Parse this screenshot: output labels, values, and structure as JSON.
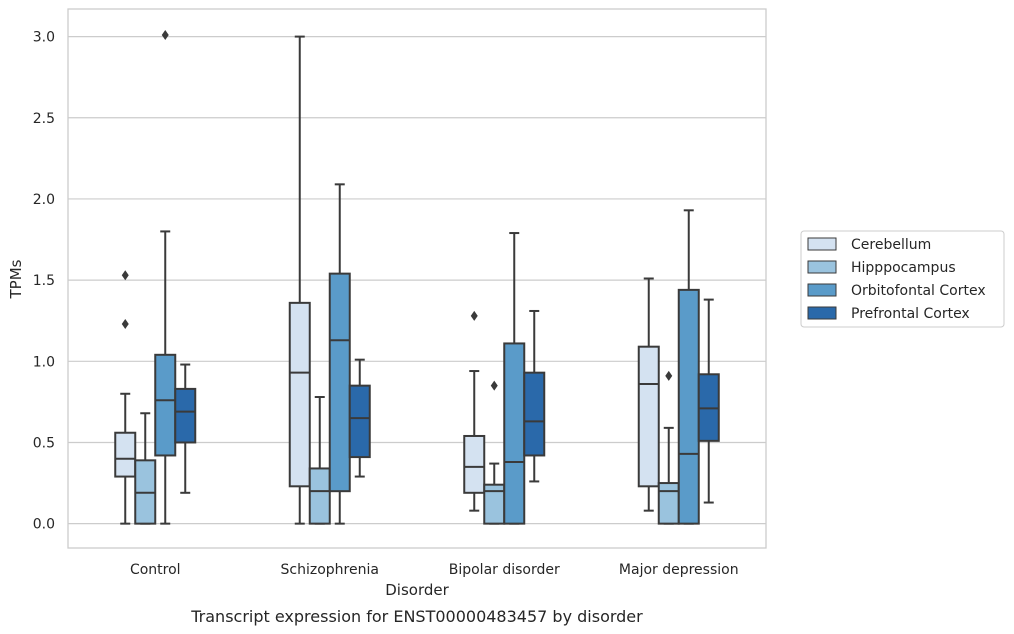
{
  "caption": "Transcript expression for ENST00000483457 by disorder",
  "chart_data": {
    "type": "box",
    "xlabel": "Disorder",
    "ylabel": "TPMs",
    "ylim": [
      -0.15,
      3.17
    ],
    "yticks": [
      0.0,
      0.5,
      1.0,
      1.5,
      2.0,
      2.5,
      3.0
    ],
    "ytick_labels": [
      "0.0",
      "0.5",
      "1.0",
      "1.5",
      "2.0",
      "2.5",
      "3.0"
    ],
    "grid": "horizontal",
    "legend_position": "right",
    "categories": [
      "Control",
      "Schizophrenia",
      "Bipolar disorder",
      "Major depression"
    ],
    "series": [
      {
        "name": "Cerebellum",
        "color": "#d4e2f1",
        "boxes": [
          {
            "whisker_low": 0.0,
            "q1": 0.29,
            "median": 0.4,
            "q3": 0.56,
            "whisker_high": 0.8,
            "outliers": [
              1.23,
              1.53
            ]
          },
          {
            "whisker_low": 0.0,
            "q1": 0.23,
            "median": 0.93,
            "q3": 1.36,
            "whisker_high": 3.0,
            "outliers": []
          },
          {
            "whisker_low": 0.08,
            "q1": 0.19,
            "median": 0.35,
            "q3": 0.54,
            "whisker_high": 0.94,
            "outliers": [
              1.28
            ]
          },
          {
            "whisker_low": 0.08,
            "q1": 0.23,
            "median": 0.86,
            "q3": 1.09,
            "whisker_high": 1.51,
            "outliers": []
          }
        ]
      },
      {
        "name": "Hipppocampus",
        "color": "#9ac3de",
        "boxes": [
          {
            "whisker_low": 0.0,
            "q1": 0.0,
            "median": 0.19,
            "q3": 0.39,
            "whisker_high": 0.68,
            "outliers": []
          },
          {
            "whisker_low": 0.0,
            "q1": 0.0,
            "median": 0.2,
            "q3": 0.34,
            "whisker_high": 0.78,
            "outliers": []
          },
          {
            "whisker_low": 0.0,
            "q1": 0.0,
            "median": 0.2,
            "q3": 0.24,
            "whisker_high": 0.37,
            "outliers": [
              0.85
            ]
          },
          {
            "whisker_low": 0.0,
            "q1": 0.0,
            "median": 0.2,
            "q3": 0.25,
            "whisker_high": 0.59,
            "outliers": [
              0.91
            ]
          }
        ]
      },
      {
        "name": "Orbitofontal Cortex",
        "color": "#5a9bc9",
        "boxes": [
          {
            "whisker_low": 0.0,
            "q1": 0.42,
            "median": 0.76,
            "q3": 1.04,
            "whisker_high": 1.8,
            "outliers": [
              3.01
            ]
          },
          {
            "whisker_low": 0.0,
            "q1": 0.2,
            "median": 1.13,
            "q3": 1.54,
            "whisker_high": 2.09,
            "outliers": []
          },
          {
            "whisker_low": 0.0,
            "q1": 0.0,
            "median": 0.38,
            "q3": 1.11,
            "whisker_high": 1.79,
            "outliers": []
          },
          {
            "whisker_low": 0.0,
            "q1": 0.0,
            "median": 0.43,
            "q3": 1.44,
            "whisker_high": 1.93,
            "outliers": []
          }
        ]
      },
      {
        "name": "Prefrontal Cortex",
        "color": "#2a69aa",
        "boxes": [
          {
            "whisker_low": 0.19,
            "q1": 0.5,
            "median": 0.69,
            "q3": 0.83,
            "whisker_high": 0.98,
            "outliers": []
          },
          {
            "whisker_low": 0.29,
            "q1": 0.41,
            "median": 0.65,
            "q3": 0.85,
            "whisker_high": 1.01,
            "outliers": []
          },
          {
            "whisker_low": 0.26,
            "q1": 0.42,
            "median": 0.63,
            "q3": 0.93,
            "whisker_high": 1.31,
            "outliers": []
          },
          {
            "whisker_low": 0.13,
            "q1": 0.51,
            "median": 0.71,
            "q3": 0.92,
            "whisker_high": 1.38,
            "outliers": []
          }
        ]
      }
    ]
  }
}
